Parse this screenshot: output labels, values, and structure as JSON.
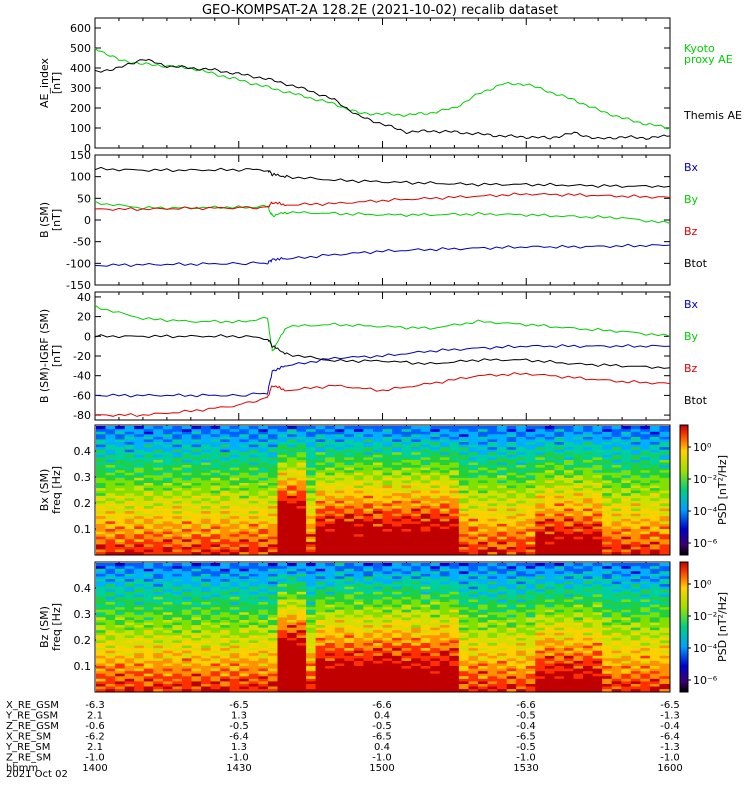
{
  "title": "GEO-KOMPSAT-2A 128.2E (2021-10-02) recalib dataset",
  "colors": {
    "black": "#000000",
    "green": "#00d000",
    "red": "#e00000",
    "blue": "#0000c0"
  },
  "x_axis": {
    "tick_labels": [
      "1400",
      "1430",
      "1500",
      "1530",
      "1600"
    ],
    "range": [
      0,
      120
    ],
    "ephemeris": [
      {
        "label": "X_RE_GSM",
        "values": [
          "-6.3",
          "-6.5",
          "-6.6",
          "-6.6",
          "-6.5"
        ]
      },
      {
        "label": "Y_RE_GSM",
        "values": [
          "2.1",
          "1.3",
          "0.4",
          "-0.5",
          "-1.3"
        ]
      },
      {
        "label": "Z_RE_GSM",
        "values": [
          "-0.6",
          "-0.5",
          "-0.5",
          "-0.4",
          "-0.4"
        ]
      },
      {
        "label": "X_RE_SM",
        "values": [
          "-6.2",
          "-6.4",
          "-6.5",
          "-6.5",
          "-6.4"
        ]
      },
      {
        "label": "Y_RE_SM",
        "values": [
          "2.1",
          "1.3",
          "0.4",
          "-0.5",
          "-1.3"
        ]
      },
      {
        "label": "Z_RE_SM",
        "values": [
          "-1.0",
          "-1.0",
          "-1.0",
          "-1.0",
          "-1.0"
        ]
      },
      {
        "label": "hhmm",
        "values": [
          "1400",
          "1430",
          "1500",
          "1530",
          "1600"
        ]
      }
    ],
    "date_label": "2021 Oct 02"
  },
  "chart_data": [
    {
      "type": "line",
      "ylabel": "AE_index\n[nT]",
      "ylim": [
        0,
        650
      ],
      "yticks": [
        0,
        100,
        200,
        300,
        400,
        500,
        600
      ],
      "x": [
        0,
        5,
        10,
        15,
        20,
        25,
        30,
        35,
        40,
        45,
        50,
        55,
        60,
        65,
        70,
        75,
        80,
        85,
        90,
        95,
        100,
        105,
        110,
        115,
        120
      ],
      "series": [
        {
          "name": "Kyoto proxy AE",
          "color": "green",
          "values": [
            500,
            440,
            420,
            410,
            400,
            370,
            340,
            310,
            280,
            250,
            220,
            175,
            170,
            165,
            175,
            200,
            270,
            320,
            320,
            280,
            240,
            190,
            150,
            120,
            100
          ]
        },
        {
          "name": "Themis AE",
          "color": "black",
          "values": [
            380,
            400,
            445,
            410,
            400,
            390,
            370,
            350,
            320,
            285,
            240,
            160,
            120,
            80,
            85,
            80,
            70,
            60,
            55,
            50,
            75,
            45,
            55,
            50,
            60
          ]
        }
      ],
      "legend": [
        {
          "text": "Kyoto",
          "color": "green"
        },
        {
          "text": "proxy AE",
          "color": "green"
        },
        {
          "text": "Themis AE",
          "color": "black"
        }
      ]
    },
    {
      "type": "line",
      "ylabel": "B (SM)\n[nT]",
      "ylim": [
        -150,
        150
      ],
      "yticks": [
        -150,
        -100,
        -50,
        0,
        50,
        100,
        150
      ],
      "x": [
        0,
        10,
        20,
        30,
        36,
        37,
        40,
        50,
        60,
        70,
        80,
        90,
        100,
        110,
        120
      ],
      "series": [
        {
          "name": "Bx",
          "color": "blue",
          "values": [
            -105,
            -103,
            -102,
            -100,
            -100,
            -90,
            -90,
            -80,
            -72,
            -68,
            -65,
            -62,
            -62,
            -60,
            -58
          ]
        },
        {
          "name": "By",
          "color": "green",
          "values": [
            40,
            28,
            28,
            30,
            30,
            10,
            18,
            15,
            12,
            12,
            14,
            12,
            8,
            5,
            -8
          ]
        },
        {
          "name": "Bz",
          "color": "red",
          "values": [
            25,
            25,
            27,
            28,
            30,
            40,
            35,
            38,
            45,
            50,
            55,
            60,
            58,
            55,
            52
          ]
        },
        {
          "name": "Btot",
          "color": "black",
          "values": [
            118,
            115,
            115,
            116,
            116,
            105,
            100,
            92,
            88,
            85,
            82,
            82,
            80,
            78,
            78
          ]
        }
      ],
      "legend": [
        {
          "text": "Bx",
          "color": "blue"
        },
        {
          "text": "By",
          "color": "green"
        },
        {
          "text": "Bz",
          "color": "red"
        },
        {
          "text": "Btot",
          "color": "black"
        }
      ]
    },
    {
      "type": "line",
      "ylabel": "B (SM)-IGRF (SM)\n[nT]",
      "ylim": [
        -85,
        45
      ],
      "yticks": [
        -80,
        -60,
        -40,
        -20,
        0,
        20,
        40
      ],
      "x": [
        0,
        10,
        20,
        30,
        36,
        37,
        40,
        50,
        60,
        70,
        80,
        90,
        100,
        110,
        120
      ],
      "series": [
        {
          "name": "Bx",
          "color": "blue",
          "values": [
            -60,
            -60,
            -60,
            -60,
            -58,
            -35,
            -30,
            -22,
            -20,
            -15,
            -12,
            -10,
            -10,
            -10,
            -10
          ]
        },
        {
          "name": "By",
          "color": "green",
          "values": [
            30,
            18,
            15,
            15,
            18,
            -15,
            10,
            12,
            10,
            8,
            15,
            12,
            8,
            5,
            0
          ]
        },
        {
          "name": "Bz",
          "color": "red",
          "values": [
            -80,
            -80,
            -76,
            -70,
            -62,
            -50,
            -55,
            -50,
            -55,
            -48,
            -40,
            -38,
            -42,
            -46,
            -48
          ]
        },
        {
          "name": "Btot",
          "color": "black",
          "values": [
            0,
            0,
            0,
            0,
            -2,
            -10,
            -18,
            -25,
            -25,
            -28,
            -24,
            -24,
            -28,
            -30,
            -32
          ]
        }
      ],
      "legend": [
        {
          "text": "Bx",
          "color": "blue"
        },
        {
          "text": "By",
          "color": "green"
        },
        {
          "text": "Bz",
          "color": "red"
        },
        {
          "text": "Btot",
          "color": "black"
        }
      ]
    },
    {
      "type": "heatmap",
      "ylabel": "Bx (SM)\nfreq [Hz]",
      "ylim": [
        0,
        0.5
      ],
      "yticks": [
        0.1,
        0.2,
        0.3,
        0.4
      ],
      "colorbar": {
        "label": "PSD [nT²/Hz]",
        "ticks": [
          "10⁰",
          "10⁻²",
          "10⁻⁴",
          "10⁻⁶"
        ]
      }
    },
    {
      "type": "heatmap",
      "ylabel": "Bz (SM)\nfreq [Hz]",
      "ylim": [
        0,
        0.5
      ],
      "yticks": [
        0.1,
        0.2,
        0.3,
        0.4
      ],
      "colorbar": {
        "label": "PSD [nT²/Hz]",
        "ticks": [
          "10⁰",
          "10⁻²",
          "10⁻⁴",
          "10⁻⁶"
        ]
      }
    }
  ]
}
